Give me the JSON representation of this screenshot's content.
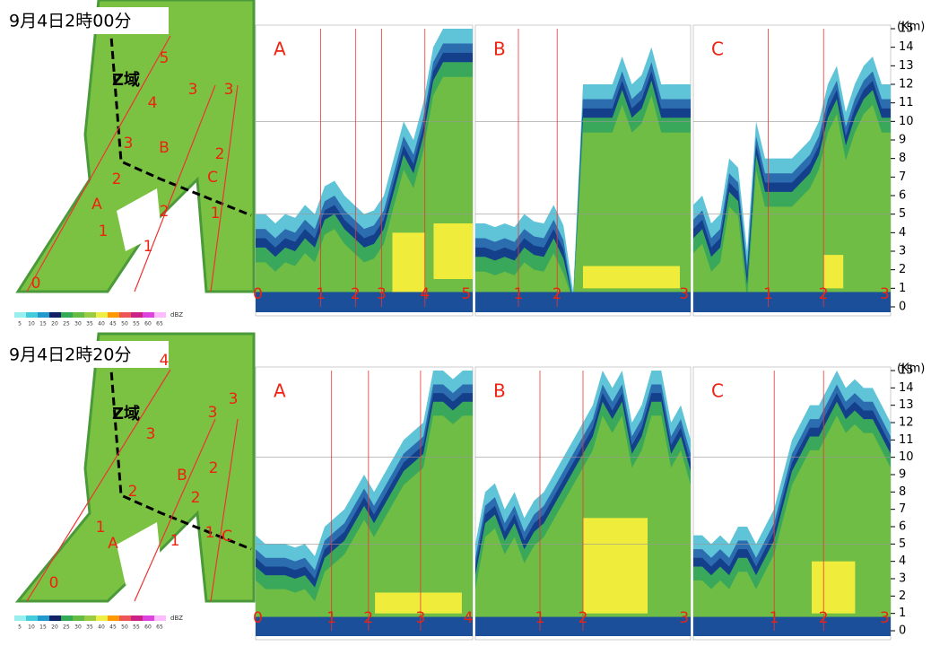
{
  "figure": {
    "rows": [
      {
        "time": "9月4日2時00分",
        "region": "Z域",
        "map_labels": [
          "5",
          "4",
          "3",
          "3",
          "3",
          "B",
          "2",
          "2",
          "C",
          "A",
          "2",
          "1",
          "1",
          "1",
          "0"
        ],
        "panels": [
          {
            "letter": "A",
            "markers": [
              "0",
              "1",
              "2",
              "3",
              "4",
              "5"
            ]
          },
          {
            "letter": "B",
            "markers": [
              "1",
              "2",
              "3"
            ]
          },
          {
            "letter": "C",
            "markers": [
              "1",
              "2",
              "3"
            ]
          }
        ]
      },
      {
        "time": "9月4日2時20分",
        "region": "Z域",
        "map_labels": [
          "4",
          "3",
          "3",
          "3",
          "B",
          "2",
          "2",
          "2",
          "1",
          "A",
          "1",
          "1",
          "C",
          "0"
        ],
        "panels": [
          {
            "letter": "A",
            "markers": [
              "0",
              "1",
              "2",
              "3",
              "4"
            ]
          },
          {
            "letter": "B",
            "markers": [
              "1",
              "2",
              "3"
            ]
          },
          {
            "letter": "C",
            "markers": [
              "1",
              "2",
              "3"
            ]
          }
        ]
      }
    ],
    "km_axis": {
      "unit": "(Km)",
      "ticks": [
        "15",
        "14",
        "13",
        "12",
        "11",
        "10",
        "9",
        "8",
        "7",
        "6",
        "5",
        "4",
        "3",
        "2",
        "1",
        "0"
      ]
    },
    "colorbar": {
      "unit": "dBZ",
      "ticks": [
        "5",
        "10",
        "15",
        "20",
        "25",
        "30",
        "35",
        "40",
        "45",
        "50",
        "55",
        "60",
        "65"
      ]
    }
  }
}
